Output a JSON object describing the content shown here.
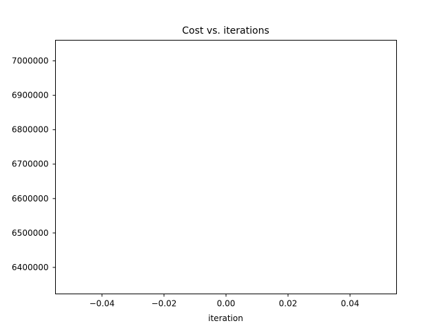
{
  "chart_data": {
    "type": "line",
    "title": "Cost vs. iterations",
    "xlabel": "iteration",
    "ylabel": "",
    "xlim": [
      -0.055,
      0.055
    ],
    "ylim": [
      6323000,
      7060000
    ],
    "x_ticks": [
      -0.04,
      -0.02,
      0.0,
      0.02,
      0.04
    ],
    "x_tick_labels": [
      "−0.04",
      "−0.02",
      "0.00",
      "0.02",
      "0.04"
    ],
    "y_ticks": [
      6400000,
      6500000,
      6600000,
      6700000,
      6800000,
      6900000,
      7000000
    ],
    "y_tick_labels": [
      "6400000",
      "6500000",
      "6600000",
      "6700000",
      "6800000",
      "6900000",
      "7000000"
    ],
    "series": [
      {
        "x": [],
        "y": []
      }
    ],
    "grid": false,
    "legend": "none"
  }
}
